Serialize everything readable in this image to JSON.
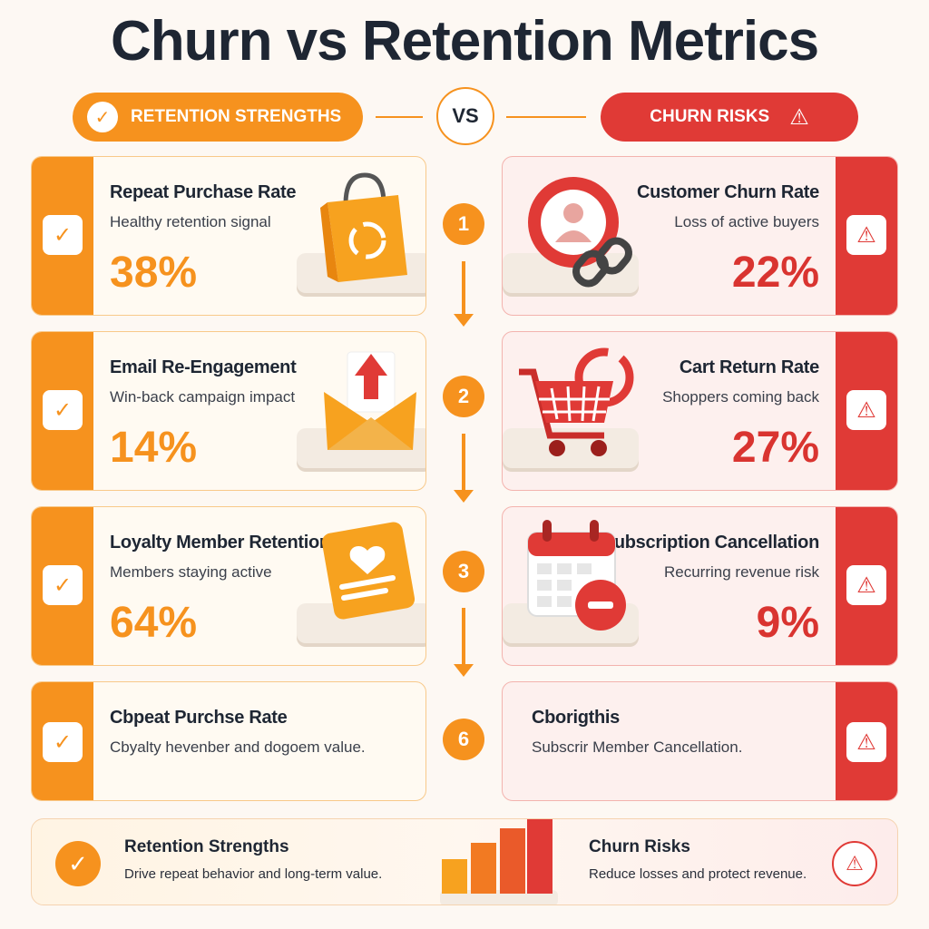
{
  "title": "Churn vs Retention Metrics",
  "header": {
    "left_label": "RETENTION STRENGTHS",
    "right_label": "CHURN RISKS",
    "vs": "VS"
  },
  "steps": [
    "1",
    "2",
    "3",
    "6"
  ],
  "retention_cards": [
    {
      "title": "Repeat Purchase Rate",
      "subtitle": "Healthy retention signal",
      "value": "38%",
      "icon": "shopping-bag-icon"
    },
    {
      "title": "Email Re-Engagement",
      "subtitle": "Win-back campaign impact",
      "value": "14%",
      "icon": "envelope-icon"
    },
    {
      "title": "Loyalty Member Retention",
      "subtitle": "Members staying active",
      "value": "64%",
      "icon": "loyalty-heart-card-icon"
    },
    {
      "title": "Cbpeat Purchse Rate",
      "subtitle": "Cbyalty hevenber and dogoem value.",
      "value": "",
      "icon": ""
    }
  ],
  "churn_cards": [
    {
      "title": "Customer Churn Rate",
      "subtitle": "Loss of active buyers",
      "value": "22%",
      "icon": "user-broken-link-icon"
    },
    {
      "title": "Cart Return Rate",
      "subtitle": "Shoppers coming back",
      "value": "27%",
      "icon": "shopping-cart-icon"
    },
    {
      "title": "Subscription Cancellation",
      "subtitle": "Recurring revenue risk",
      "value": "9%",
      "icon": "calendar-minus-icon"
    },
    {
      "title": "Cborigthis",
      "subtitle": "Subscrir Member Cancellation.",
      "value": "",
      "icon": ""
    }
  ],
  "summary": {
    "left_title": "Retention Strengths",
    "left_text": "Drive repeat behavior and long-term value.",
    "right_title": "Churn Risks",
    "right_text": "Reduce losses and protect revenue."
  },
  "colors": {
    "retention": "#f6921e",
    "churn": "#e03a36",
    "background": "#fdf8f3"
  }
}
